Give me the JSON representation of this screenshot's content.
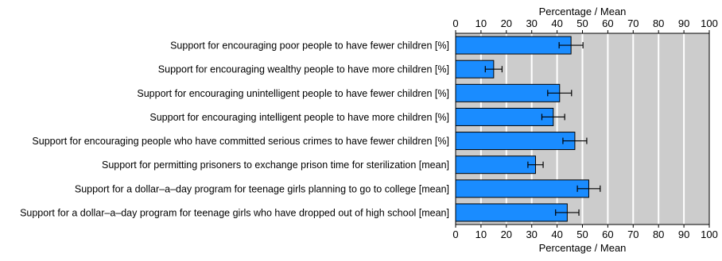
{
  "chart_data": {
    "type": "bar",
    "orientation": "horizontal",
    "title": "",
    "xlabel": "Percentage / Mean",
    "xlabel_bottom": "Percentage / Mean",
    "xlim": [
      0,
      100
    ],
    "xticks": [
      0,
      10,
      20,
      30,
      40,
      50,
      60,
      70,
      80,
      90,
      100
    ],
    "grid": true,
    "categories": [
      "Support for encouraging poor people to have fewer children [%]",
      "Support for encouraging wealthy people to have more children [%]",
      "Support for encouraging unintelligent people to have fewer children [%]",
      "Support for encouraging intelligent people to have more children [%]",
      "Support for encouraging people who have committed serious crimes to have fewer children [%]",
      "Support for permitting prisoners to exchange prison time for sterilization [mean]",
      "Support for a dollar–a–day program for teenage girls planning to go to college [mean]",
      "Support for a dollar–a–day program for teenage girls who have dropped out of high school [mean]"
    ],
    "values": [
      45.5,
      15,
      41,
      38.5,
      47,
      31.5,
      52.5,
      44
    ],
    "errors": [
      4.7,
      3.3,
      4.7,
      4.5,
      4.7,
      3,
      4.5,
      4.6
    ],
    "colors": {
      "bar": "#1a8cff",
      "plot_background": "#cccccc",
      "gridline": "#ffffff",
      "axis": "#000000"
    }
  }
}
